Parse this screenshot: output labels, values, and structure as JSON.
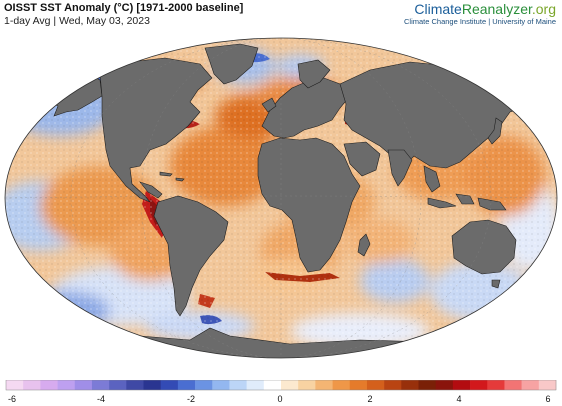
{
  "header": {
    "title": "OISST SST Anomaly (°C) [1971-2000 baseline]",
    "subtitle": "1-day Avg | Wed, May 03, 2023"
  },
  "brand": {
    "name_part1": "Climate",
    "name_part2": "Reanalyzer",
    "name_part3": ".org",
    "tagline": "Climate Change Institute | University of Maine"
  },
  "colorbar": {
    "ticks": [
      "-6",
      "-4",
      "-2",
      "0",
      "2",
      "4",
      "6"
    ],
    "range": [
      -6,
      6
    ],
    "bins": [
      "#f5d9f2",
      "#e8c2ee",
      "#d7abef",
      "#bea0f0",
      "#a08ee8",
      "#7c7bd6",
      "#5b63c0",
      "#3f49a5",
      "#2a3591",
      "#334bb5",
      "#4a6ed1",
      "#6b93e3",
      "#93b7f0",
      "#bcd5f7",
      "#e0ecfb",
      "#ffffff",
      "#fce9cf",
      "#f8d3a2",
      "#f4b573",
      "#ef9748",
      "#e57b2b",
      "#d4601c",
      "#b94412",
      "#98300b",
      "#7a2007",
      "#8a140c",
      "#b30c10",
      "#d2181c",
      "#e53a3a",
      "#f27474",
      "#f7a3a3",
      "#f9c8c8"
    ]
  },
  "map": {
    "ocean_colors": {
      "warm": "#e8883a",
      "hot": "#b8211d",
      "cool": "#a9c4ec",
      "cold": "#4a68c8",
      "neutral": "#f6efe6"
    },
    "land_color": "#6b6b6b",
    "border_color": "#222222"
  }
}
